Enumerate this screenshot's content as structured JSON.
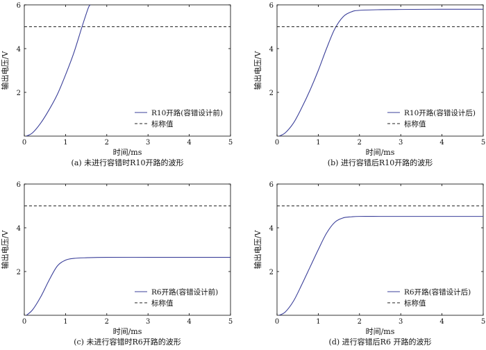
{
  "chart_data": [
    {
      "type": "line",
      "caption": "(a) 未进行容错时R10开路的波形",
      "xlabel": "时间/ms",
      "ylabel": "输出电压/V",
      "xlim": [
        0,
        5
      ],
      "ylim": [
        0,
        6
      ],
      "xticks": [
        0,
        1,
        2,
        3,
        4,
        5
      ],
      "yticks": [
        2,
        4,
        6
      ],
      "legend_position": "lower-right",
      "series": [
        {
          "name": "R10开路(容错设计前)",
          "style": "solid",
          "color": "#3a3f99",
          "x": [
            0.05,
            0.2,
            0.4,
            0.6,
            0.8,
            1.0,
            1.2,
            1.4,
            1.55,
            1.6
          ],
          "y": [
            0.0,
            0.15,
            0.6,
            1.2,
            1.9,
            2.8,
            3.8,
            5.0,
            5.85,
            6.0
          ]
        },
        {
          "name": "标称值",
          "style": "dashed",
          "color": "#222222",
          "x": [
            0,
            5
          ],
          "y": [
            5.0,
            5.0
          ]
        }
      ]
    },
    {
      "type": "line",
      "caption": "(b) 进行容错后R10开路的波形",
      "xlabel": "时间/ms",
      "ylabel": "输出电压/V",
      "xlim": [
        0,
        5
      ],
      "ylim": [
        0,
        6
      ],
      "xticks": [
        0,
        1,
        2,
        3,
        4,
        5
      ],
      "yticks": [
        2,
        4,
        6
      ],
      "legend_position": "lower-right",
      "series": [
        {
          "name": "R10开路(容错设计后)",
          "style": "solid",
          "color": "#3a3f99",
          "x": [
            0.05,
            0.2,
            0.4,
            0.6,
            0.8,
            1.0,
            1.2,
            1.4,
            1.6,
            1.8,
            2.0,
            2.5,
            3.0,
            4.0,
            5.0
          ],
          "y": [
            0.0,
            0.15,
            0.6,
            1.3,
            2.1,
            3.0,
            4.0,
            4.9,
            5.45,
            5.68,
            5.75,
            5.78,
            5.79,
            5.8,
            5.8
          ]
        },
        {
          "name": "标称值",
          "style": "dashed",
          "color": "#222222",
          "x": [
            0,
            5
          ],
          "y": [
            5.0,
            5.0
          ]
        }
      ]
    },
    {
      "type": "line",
      "caption": "(c) 未进行容错时R6开路的波形",
      "xlabel": "时间/ms",
      "ylabel": "输出电压/V",
      "xlim": [
        0,
        5
      ],
      "ylim": [
        0,
        6
      ],
      "xticks": [
        0,
        1,
        2,
        3,
        4,
        5
      ],
      "yticks": [
        2,
        4,
        6
      ],
      "legend_position": "lower-right",
      "series": [
        {
          "name": "R6开路(容错设计前)",
          "style": "solid",
          "color": "#3a3f99",
          "x": [
            0.05,
            0.2,
            0.4,
            0.6,
            0.8,
            1.0,
            1.2,
            1.5,
            2.0,
            3.0,
            4.0,
            5.0
          ],
          "y": [
            0.0,
            0.25,
            0.85,
            1.6,
            2.25,
            2.52,
            2.6,
            2.63,
            2.65,
            2.65,
            2.65,
            2.65
          ]
        },
        {
          "name": "标称值",
          "style": "dashed",
          "color": "#222222",
          "x": [
            0,
            5
          ],
          "y": [
            5.0,
            5.0
          ]
        }
      ]
    },
    {
      "type": "line",
      "caption": "(d) 进行容错后R6 开路的波形",
      "xlabel": "时间/ms",
      "ylabel": "输出电压/V",
      "xlim": [
        0,
        5
      ],
      "ylim": [
        0,
        6
      ],
      "xticks": [
        0,
        1,
        2,
        3,
        4,
        5
      ],
      "yticks": [
        2,
        4,
        6
      ],
      "legend_position": "lower-right",
      "series": [
        {
          "name": "R6开路(容错设计后)",
          "style": "solid",
          "color": "#3a3f99",
          "x": [
            0.05,
            0.2,
            0.4,
            0.6,
            0.8,
            1.0,
            1.2,
            1.4,
            1.6,
            1.8,
            2.0,
            2.5,
            3.0,
            4.0,
            5.0
          ],
          "y": [
            0.0,
            0.15,
            0.65,
            1.4,
            2.2,
            3.0,
            3.75,
            4.25,
            4.45,
            4.5,
            4.52,
            4.52,
            4.52,
            4.52,
            4.52
          ]
        },
        {
          "name": "标称值",
          "style": "dashed",
          "color": "#222222",
          "x": [
            0,
            5
          ],
          "y": [
            5.0,
            5.0
          ]
        }
      ]
    }
  ]
}
